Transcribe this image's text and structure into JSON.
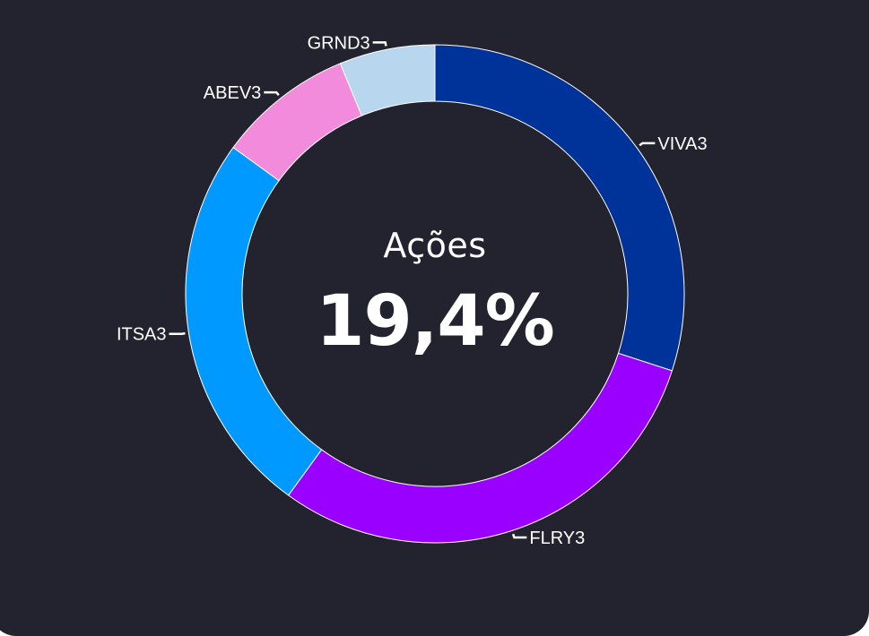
{
  "chart_data": {
    "type": "pie",
    "variant": "donut",
    "center_label": "Ações",
    "center_value": "19,4%",
    "slices": [
      {
        "label": "VIVA3",
        "value": 30.0,
        "color": "#003399"
      },
      {
        "label": "FLRY3",
        "value": 30.0,
        "color": "#9900ff"
      },
      {
        "label": "ITSA3",
        "value": 25.0,
        "color": "#0099ff"
      },
      {
        "label": "ABEV3",
        "value": 8.8,
        "color": "#f28bdc"
      },
      {
        "label": "GRND3",
        "value": 6.2,
        "color": "#b8d6ee"
      }
    ]
  },
  "colors": {
    "background": "#23232f",
    "text": "#ffffff",
    "slice_separator": "#ffffff"
  }
}
